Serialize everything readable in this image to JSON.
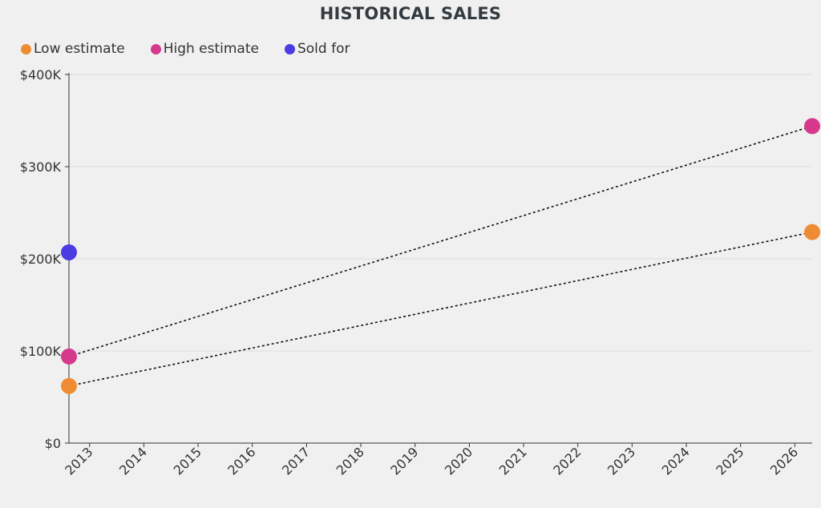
{
  "chart_data": {
    "type": "scatter",
    "title": "HISTORICAL SALES",
    "xlabel": "",
    "ylabel": "",
    "xlim": [
      2012.62,
      2026.32
    ],
    "ylim": [
      0,
      400000
    ],
    "x_ticks": [
      "2013",
      "2014",
      "2015",
      "2016",
      "2017",
      "2018",
      "2019",
      "2020",
      "2021",
      "2022",
      "2023",
      "2024",
      "2025",
      "2026"
    ],
    "y_ticks": [
      {
        "value": 0,
        "label": "$0"
      },
      {
        "value": 100000,
        "label": "$100K"
      },
      {
        "value": 200000,
        "label": "$200K"
      },
      {
        "value": 300000,
        "label": "$300K"
      },
      {
        "value": 400000,
        "label": "$400K"
      }
    ],
    "grid": true,
    "legend_position": "top-left",
    "series": [
      {
        "name": "Low estimate",
        "color": "#ef8c33",
        "points": [
          {
            "x": 2012.62,
            "y": 62000
          },
          {
            "x": 2026.32,
            "y": 229000
          }
        ],
        "trend_line": "dotted"
      },
      {
        "name": "High estimate",
        "color": "#d6398c",
        "points": [
          {
            "x": 2012.62,
            "y": 94000
          },
          {
            "x": 2026.32,
            "y": 344000
          }
        ],
        "trend_line": "dotted"
      },
      {
        "name": "Sold for",
        "color": "#4b3be3",
        "points": [
          {
            "x": 2012.62,
            "y": 207000
          }
        ]
      }
    ]
  }
}
